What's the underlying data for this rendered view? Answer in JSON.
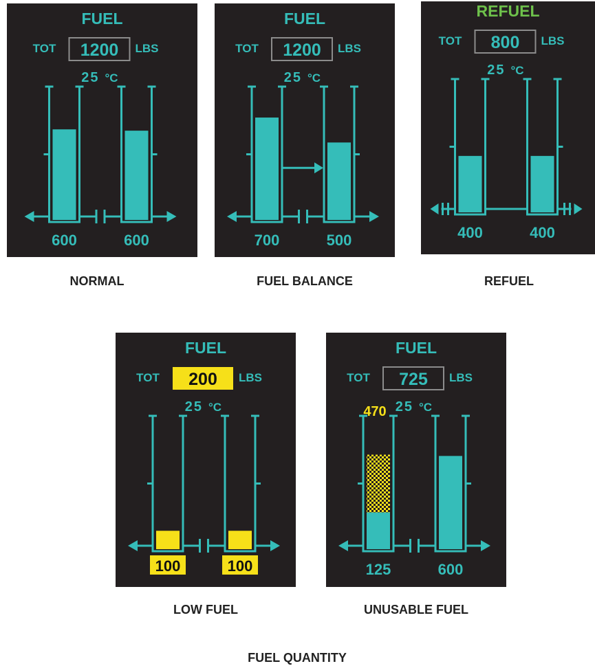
{
  "colors": {
    "panel_bg": "#231f20",
    "teal": "#35bdb9",
    "refuel_green": "#6ec14b",
    "caution_yellow": "#f6e019",
    "box_gray": "#8c8c8c",
    "caption": "#222222"
  },
  "panels": [
    {
      "id": "normal",
      "title": "FUEL",
      "tot_label": "TOT",
      "total": "1200",
      "unit": "LBS",
      "temp": "25",
      "temp_unit": "°C",
      "left_qty": "600",
      "right_qty": "600",
      "left_level": 0.69,
      "right_level": 0.68,
      "state": "normal",
      "caption": "NORMAL"
    },
    {
      "id": "fuel-balance",
      "title": "FUEL",
      "tot_label": "TOT",
      "total": "1200",
      "unit": "LBS",
      "temp": "25",
      "temp_unit": "°C",
      "left_qty": "700",
      "right_qty": "500",
      "left_level": 0.78,
      "right_level": 0.59,
      "state": "balance",
      "caption": "FUEL BALANCE"
    },
    {
      "id": "refuel",
      "title": "REFUEL",
      "tot_label": "TOT",
      "total": "800",
      "unit": "LBS",
      "temp": "25",
      "temp_unit": "°C",
      "left_qty": "400",
      "right_qty": "400",
      "left_level": 0.43,
      "right_level": 0.43,
      "state": "refuel",
      "caption": "REFUEL"
    },
    {
      "id": "low-fuel",
      "title": "FUEL",
      "tot_label": "TOT",
      "total": "200",
      "unit": "LBS",
      "temp": "25",
      "temp_unit": "°C",
      "left_qty": "100",
      "right_qty": "100",
      "left_level": 0.14,
      "right_level": 0.14,
      "state": "low",
      "caption": "LOW FUEL"
    },
    {
      "id": "unusable-fuel",
      "title": "FUEL",
      "tot_label": "TOT",
      "total": "725",
      "unit": "LBS",
      "temp": "25",
      "temp_unit": "°C",
      "left_qty": "125",
      "right_qty": "600",
      "left_level": 0.28,
      "right_level": 0.71,
      "unusable_qty": "470",
      "unusable_level": 0.72,
      "state": "unusable",
      "caption": "UNUSABLE FUEL"
    }
  ],
  "figure_caption": "FUEL QUANTITY"
}
